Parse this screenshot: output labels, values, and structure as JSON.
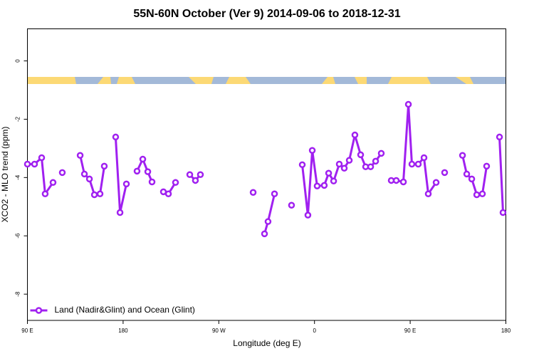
{
  "chart_data": {
    "type": "line",
    "title": "55N-60N October (Ver 9)   2014-09-06 to 2018-12-31",
    "xlabel": "Longitude (deg E)",
    "ylabel": "XCO2 - MLO trend (ppm)",
    "x": [
      90,
      96.7,
      103.4,
      106.7,
      114.1,
      null,
      122.8,
      null,
      139.6,
      143.6,
      148.3,
      153,
      158.3,
      162.3,
      null,
      173,
      177.1,
      183.1,
      null,
      193.1,
      198.5,
      203.2,
      207.2,
      null,
      217.9,
      222.6,
      229.3,
      null,
      242.7,
      248,
      252.7,
      null,
      302.3,
      null,
      313,
      316.3,
      322.4,
      null,
      338.4,
      null,
      348.5,
      353.8,
      357.9,
      362.5,
      369.2,
      373.3,
      378,
      383.3,
      388,
      392.7,
      398,
      403.4,
      408.1,
      412.8,
      417.5,
      422.8,
      null,
      432.2,
      436.9,
      443.6,
      448.3,
      451.6,
      457.6,
      463,
      467,
      474.4,
      null,
      482.4,
      null,
      499.2,
      503.2,
      507.9,
      512.6,
      517.9,
      521.9,
      null,
      534,
      537.3
    ],
    "series": [
      {
        "name": "Land (Nadir&Glint) and Ocean (Glint)",
        "color": "#a020f0",
        "values": [
          -3.54,
          -3.54,
          -3.32,
          -4.56,
          -4.17,
          null,
          -3.83,
          null,
          -3.24,
          -3.88,
          -4.05,
          -4.59,
          -4.56,
          -3.61,
          null,
          -2.61,
          -5.2,
          -4.22,
          null,
          -3.78,
          -3.37,
          -3.8,
          -4.15,
          null,
          -4.49,
          -4.56,
          -4.17,
          null,
          -3.9,
          -4.1,
          -3.9,
          null,
          -4.51,
          null,
          -5.93,
          -5.51,
          -4.56,
          null,
          -4.95,
          null,
          -3.56,
          -5.29,
          -3.07,
          -4.29,
          -4.27,
          -3.85,
          -4.12,
          -3.54,
          -3.68,
          -3.41,
          -2.54,
          -3.22,
          -3.63,
          -3.63,
          -3.44,
          -3.17,
          null,
          -4.1,
          -4.1,
          -4.15,
          -1.49,
          -3.54,
          -3.54,
          -3.32,
          -4.56,
          -4.17,
          null,
          -3.83,
          null,
          -3.24,
          -3.88,
          -4.05,
          -4.59,
          -4.56,
          -3.61,
          null,
          -2.61,
          -5.2
        ]
      }
    ],
    "xlim": [
      90,
      540
    ],
    "xticks": [
      {
        "value": 90,
        "label": "90 E"
      },
      180,
      {
        "value": 270,
        "label": "90 W"
      },
      {
        "value": 360,
        "label": "0"
      },
      {
        "value": 450,
        "label": "90 E"
      },
      {
        "value": 540,
        "label": "180"
      }
    ],
    "ylim": [
      -8.9,
      1.1
    ],
    "yticks": [
      0,
      -2,
      -4,
      -6,
      -8
    ],
    "legend": "bottom-left"
  }
}
